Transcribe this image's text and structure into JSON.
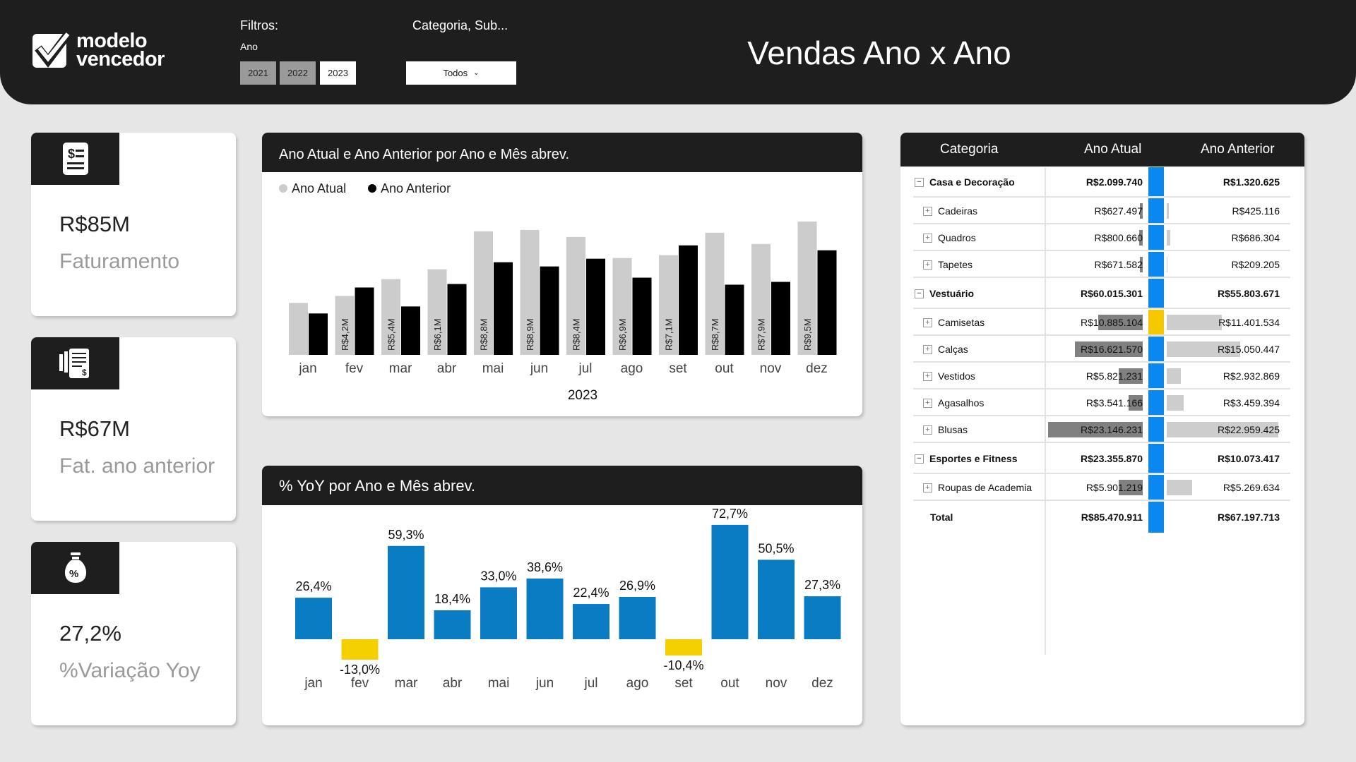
{
  "header": {
    "logo_line1": "modelo",
    "logo_line2": "vencedor",
    "filters_label": "Filtros:",
    "year_label": "Ano",
    "years": [
      "2021",
      "2022",
      "2023"
    ],
    "selected_year": "2023",
    "category_label": "Categoria, Sub...",
    "category_value": "Todos",
    "title": "Vendas Ano x Ano"
  },
  "kpis": [
    {
      "value": "R$85M",
      "label": "Faturamento",
      "icon": "invoice-icon"
    },
    {
      "value": "R$67M",
      "label": "Fat. ano anterior",
      "icon": "receipt-stack-icon"
    },
    {
      "value": "27,2%",
      "label": "%Variação Yoy",
      "icon": "money-bag-percent-icon"
    }
  ],
  "chart_data": [
    {
      "type": "bar",
      "title": "Ano Atual e Ano Anterior por Ano e Mês abrev.",
      "xlabel": "2023",
      "categories": [
        "jan",
        "fev",
        "mar",
        "abr",
        "mai",
        "jun",
        "jul",
        "ago",
        "set",
        "out",
        "nov",
        "dez"
      ],
      "series": [
        {
          "name": "Ano Atual",
          "color": "#cccccc",
          "values": [
            3.7,
            4.2,
            5.4,
            6.1,
            8.8,
            8.9,
            8.4,
            6.9,
            7.1,
            8.7,
            7.9,
            9.5
          ],
          "labels": [
            "",
            "R$4,2M",
            "R$5,4M",
            "R$6,1M",
            "R$8,8M",
            "R$8,9M",
            "R$8,4M",
            "R$6,9M",
            "R$7,1M",
            "R$8,7M",
            "R$7,9M",
            "R$9,5M"
          ]
        },
        {
          "name": "Ano Anterior",
          "color": "#000000",
          "values": [
            2.95,
            4.8,
            3.45,
            5.05,
            6.6,
            6.3,
            6.85,
            5.5,
            7.8,
            5.0,
            5.2,
            7.45
          ]
        }
      ],
      "unit": "R$ M",
      "legend": "top-left",
      "grid": false
    },
    {
      "type": "bar",
      "title": "% YoY por Ano e Mês abrev.",
      "categories": [
        "jan",
        "fev",
        "mar",
        "abr",
        "mai",
        "jun",
        "jul",
        "ago",
        "set",
        "out",
        "nov",
        "dez"
      ],
      "values": [
        26.4,
        -13.0,
        59.3,
        18.4,
        33.0,
        38.6,
        22.4,
        26.9,
        -10.4,
        72.7,
        50.5,
        27.3
      ],
      "labels": [
        "26,4%",
        "-13,0%",
        "59,3%",
        "18,4%",
        "33,0%",
        "38,6%",
        "22,4%",
        "26,9%",
        "-10,4%",
        "72,7%",
        "50,5%",
        "27,3%"
      ],
      "positive_color": "#0a7cc4",
      "negative_color": "#f5d000",
      "grid": false
    }
  ],
  "table": {
    "headers": [
      "Categoria",
      "Ano Atual",
      "Ano Anterior"
    ],
    "indicator_up_color": "#0a88f0",
    "indicator_down_color": "#f5c800",
    "rows": [
      {
        "name": "Casa e Decoração",
        "level": 0,
        "atual": "R$2.099.740",
        "anterior": "R$1.320.625",
        "atual_num": 2099740,
        "anterior_num": 1320625,
        "indicator": "up"
      },
      {
        "name": "Cadeiras",
        "level": 1,
        "atual": "R$627.497",
        "anterior": "R$425.116",
        "atual_num": 627497,
        "anterior_num": 425116,
        "indicator": "up"
      },
      {
        "name": "Quadros",
        "level": 1,
        "atual": "R$800.660",
        "anterior": "R$686.304",
        "atual_num": 800660,
        "anterior_num": 686304,
        "indicator": "up"
      },
      {
        "name": "Tapetes",
        "level": 1,
        "atual": "R$671.582",
        "anterior": "R$209.205",
        "atual_num": 671582,
        "anterior_num": 209205,
        "indicator": "up"
      },
      {
        "name": "Vestuário",
        "level": 0,
        "atual": "R$60.015.301",
        "anterior": "R$55.803.671",
        "atual_num": 60015301,
        "anterior_num": 55803671,
        "indicator": "up"
      },
      {
        "name": "Camisetas",
        "level": 1,
        "atual": "R$10.885.104",
        "anterior": "R$11.401.534",
        "atual_num": 10885104,
        "anterior_num": 11401534,
        "indicator": "down"
      },
      {
        "name": "Calças",
        "level": 1,
        "atual": "R$16.621.570",
        "anterior": "R$15.050.447",
        "atual_num": 16621570,
        "anterior_num": 15050447,
        "indicator": "up"
      },
      {
        "name": "Vestidos",
        "level": 1,
        "atual": "R$5.821.231",
        "anterior": "R$2.932.869",
        "atual_num": 5821231,
        "anterior_num": 2932869,
        "indicator": "up"
      },
      {
        "name": "Agasalhos",
        "level": 1,
        "atual": "R$3.541.166",
        "anterior": "R$3.459.394",
        "atual_num": 3541166,
        "anterior_num": 3459394,
        "indicator": "up"
      },
      {
        "name": "Blusas",
        "level": 1,
        "atual": "R$23.146.231",
        "anterior": "R$22.959.425",
        "atual_num": 23146231,
        "anterior_num": 22959425,
        "indicator": "up"
      },
      {
        "name": "Esportes e Fitness",
        "level": 0,
        "atual": "R$23.355.870",
        "anterior": "R$10.073.417",
        "atual_num": 23355870,
        "anterior_num": 10073417,
        "indicator": "up"
      },
      {
        "name": "Roupas de Academia",
        "level": 1,
        "atual": "R$5.901.219",
        "anterior": "R$5.269.634",
        "atual_num": 5901219,
        "anterior_num": 5269634,
        "indicator": "up"
      },
      {
        "name": "Total",
        "level": 2,
        "atual": "R$85.470.911",
        "anterior": "R$67.197.713",
        "indicator": "up"
      }
    ]
  }
}
